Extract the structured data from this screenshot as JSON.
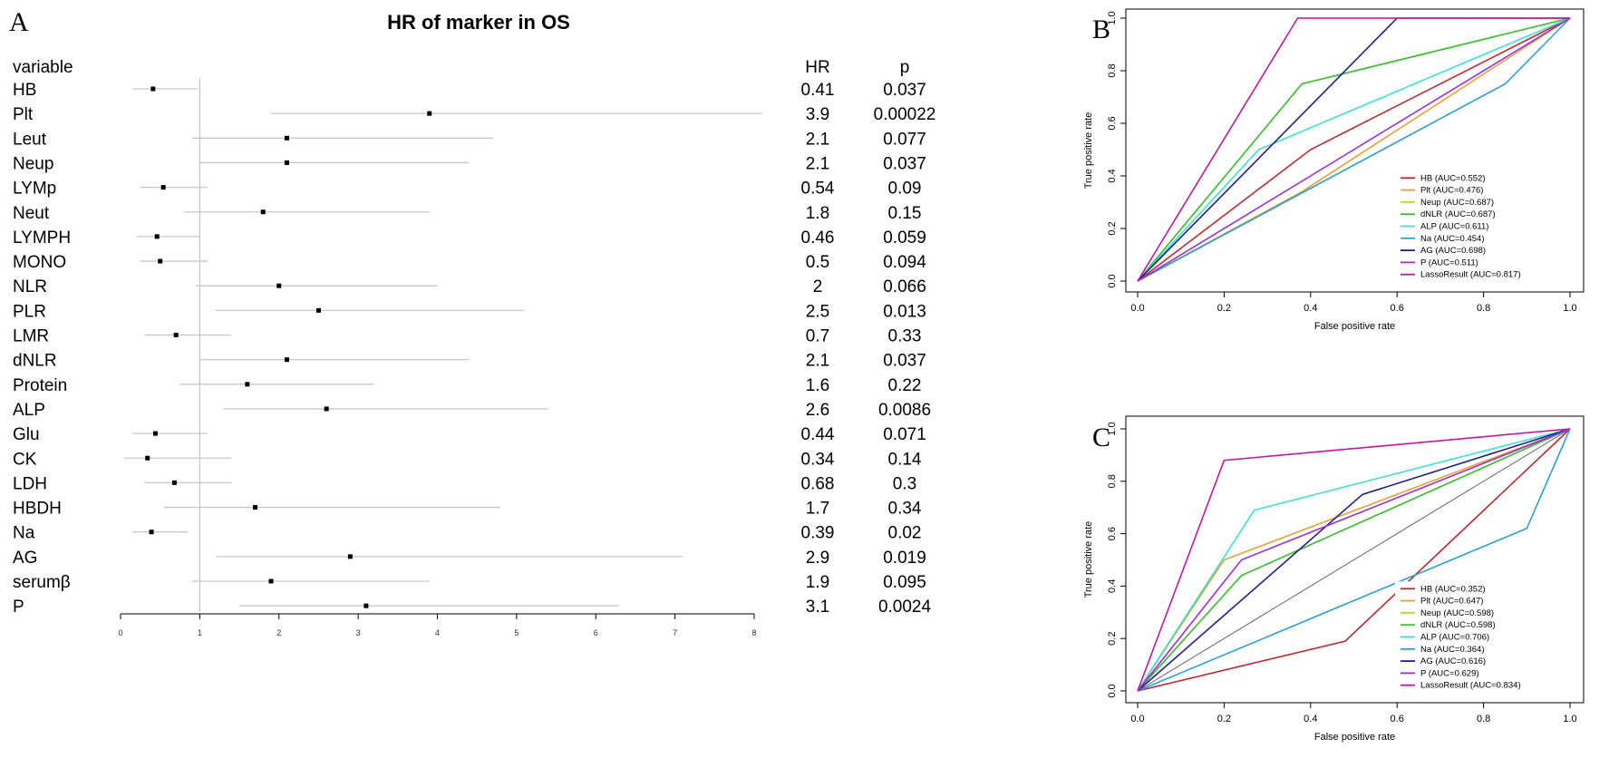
{
  "chart_data": [
    {
      "type": "forest",
      "panel_label": "A",
      "title": "HR of marker in OS",
      "header_variable": "variable",
      "header_hr": "HR",
      "header_p": "p",
      "x_ticks": [
        "0",
        "1",
        "2",
        "3",
        "4",
        "5",
        "6",
        "7",
        "8"
      ],
      "xlim": [
        0,
        8
      ],
      "reference_line": 1,
      "rows": [
        {
          "variable": "HB",
          "hr": 0.41,
          "lo": 0.15,
          "hi": 0.98,
          "hr_text": "0.41",
          "p": "0.037"
        },
        {
          "variable": "Plt",
          "hr": 3.9,
          "lo": 1.9,
          "hi": 8.1,
          "hr_text": "3.9",
          "p": "0.00022"
        },
        {
          "variable": "Leut",
          "hr": 2.1,
          "lo": 0.9,
          "hi": 4.7,
          "hr_text": "2.1",
          "p": "0.077"
        },
        {
          "variable": "Neup",
          "hr": 2.1,
          "lo": 1.0,
          "hi": 4.4,
          "hr_text": "2.1",
          "p": "0.037"
        },
        {
          "variable": "LYMp",
          "hr": 0.54,
          "lo": 0.25,
          "hi": 1.1,
          "hr_text": "0.54",
          "p": "0.09"
        },
        {
          "variable": "Neut",
          "hr": 1.8,
          "lo": 0.8,
          "hi": 3.9,
          "hr_text": "1.8",
          "p": "0.15"
        },
        {
          "variable": "LYMPH",
          "hr": 0.46,
          "lo": 0.2,
          "hi": 1.0,
          "hr_text": "0.46",
          "p": "0.059"
        },
        {
          "variable": "MONO",
          "hr": 0.5,
          "lo": 0.25,
          "hi": 1.1,
          "hr_text": "0.5",
          "p": "0.094"
        },
        {
          "variable": "NLR",
          "hr": 2.0,
          "lo": 0.95,
          "hi": 4.0,
          "hr_text": "2",
          "p": "0.066"
        },
        {
          "variable": "PLR",
          "hr": 2.5,
          "lo": 1.2,
          "hi": 5.1,
          "hr_text": "2.5",
          "p": "0.013"
        },
        {
          "variable": "LMR",
          "hr": 0.7,
          "lo": 0.3,
          "hi": 1.4,
          "hr_text": "0.7",
          "p": "0.33"
        },
        {
          "variable": "dNLR",
          "hr": 2.1,
          "lo": 1.0,
          "hi": 4.4,
          "hr_text": "2.1",
          "p": "0.037"
        },
        {
          "variable": "Protein",
          "hr": 1.6,
          "lo": 0.75,
          "hi": 3.2,
          "hr_text": "1.6",
          "p": "0.22"
        },
        {
          "variable": "ALP",
          "hr": 2.6,
          "lo": 1.3,
          "hi": 5.4,
          "hr_text": "2.6",
          "p": "0.0086"
        },
        {
          "variable": "Glu",
          "hr": 0.44,
          "lo": 0.15,
          "hi": 1.1,
          "hr_text": "0.44",
          "p": "0.071"
        },
        {
          "variable": "CK",
          "hr": 0.34,
          "lo": 0.05,
          "hi": 1.4,
          "hr_text": "0.34",
          "p": "0.14"
        },
        {
          "variable": "LDH",
          "hr": 0.68,
          "lo": 0.3,
          "hi": 1.4,
          "hr_text": "0.68",
          "p": "0.3"
        },
        {
          "variable": "HBDH",
          "hr": 1.7,
          "lo": 0.55,
          "hi": 4.8,
          "hr_text": "1.7",
          "p": "0.34"
        },
        {
          "variable": "Na",
          "hr": 0.39,
          "lo": 0.15,
          "hi": 0.85,
          "hr_text": "0.39",
          "p": "0.02"
        },
        {
          "variable": "AG",
          "hr": 2.9,
          "lo": 1.2,
          "hi": 7.1,
          "hr_text": "2.9",
          "p": "0.019"
        },
        {
          "variable": "serumβ",
          "hr": 1.9,
          "lo": 0.9,
          "hi": 3.9,
          "hr_text": "1.9",
          "p": "0.095"
        },
        {
          "variable": "P",
          "hr": 3.1,
          "lo": 1.5,
          "hi": 6.3,
          "hr_text": "3.1",
          "p": "0.0024"
        }
      ]
    },
    {
      "type": "line",
      "panel_label": "B",
      "xlabel": "False positive rate",
      "ylabel": "True positive rate",
      "xlim": [
        0,
        1
      ],
      "ylim": [
        0,
        1
      ],
      "x_ticks": [
        "0.0",
        "0.2",
        "0.4",
        "0.6",
        "0.8",
        "1.0"
      ],
      "y_ticks": [
        "0.0",
        "0.2",
        "0.4",
        "0.6",
        "0.8",
        "1.0"
      ],
      "legend_position": "bottom-right",
      "diagonal": false,
      "series": [
        {
          "name": "HB (AUC=0.552)",
          "color": "#c0282d",
          "x": [
            0,
            0.4,
            1
          ],
          "y": [
            0,
            0.5,
            1
          ]
        },
        {
          "name": "Plt (AUC=0.476)",
          "color": "#e5a23a",
          "x": [
            0,
            0.38,
            1
          ],
          "y": [
            0,
            0.34,
            1
          ]
        },
        {
          "name": "Neup (AUC=0.687)",
          "color": "#c8cc3a",
          "x": [
            0,
            0.38,
            1
          ],
          "y": [
            0,
            0.75,
            1
          ]
        },
        {
          "name": "dNLR (AUC=0.687)",
          "color": "#3cbf3c",
          "x": [
            0,
            0.38,
            1
          ],
          "y": [
            0,
            0.75,
            1
          ]
        },
        {
          "name": "ALP (AUC=0.611)",
          "color": "#3fe0d0",
          "x": [
            0,
            0.28,
            1
          ],
          "y": [
            0,
            0.5,
            1
          ]
        },
        {
          "name": "Na (AUC=0.454)",
          "color": "#2aa1d6",
          "x": [
            0,
            0.85,
            1
          ],
          "y": [
            0,
            0.75,
            1
          ]
        },
        {
          "name": "AG (AUC=0.698)",
          "color": "#1f1f8a",
          "x": [
            0,
            0.6,
            1
          ],
          "y": [
            0,
            1,
            1
          ]
        },
        {
          "name": "P (AUC=0.511)",
          "color": "#9b30d9",
          "x": [
            0,
            0.45,
            1
          ],
          "y": [
            0,
            0.45,
            1
          ]
        },
        {
          "name": "LassoResult (AUC=0.817)",
          "color": "#c2189e",
          "x": [
            0,
            0.37,
            1
          ],
          "y": [
            0,
            1,
            1
          ]
        }
      ]
    },
    {
      "type": "line",
      "panel_label": "C",
      "xlabel": "False positive rate",
      "ylabel": "True positive rate",
      "xlim": [
        0,
        1
      ],
      "ylim": [
        0,
        1
      ],
      "x_ticks": [
        "0.0",
        "0.2",
        "0.4",
        "0.6",
        "0.8",
        "1.0"
      ],
      "y_ticks": [
        "0.0",
        "0.2",
        "0.4",
        "0.6",
        "0.8",
        "1.0"
      ],
      "legend_position": "bottom-right",
      "diagonal": true,
      "series": [
        {
          "name": "HB (AUC=0.352)",
          "color": "#c0282d",
          "x": [
            0,
            0.48,
            1
          ],
          "y": [
            0,
            0.19,
            1
          ]
        },
        {
          "name": "Plt (AUC=0.647)",
          "color": "#e5a23a",
          "x": [
            0,
            0.2,
            1
          ],
          "y": [
            0,
            0.5,
            1
          ]
        },
        {
          "name": "Neup (AUC=0.598)",
          "color": "#c8cc3a",
          "x": [
            0,
            0.24,
            1
          ],
          "y": [
            0,
            0.44,
            1
          ]
        },
        {
          "name": "dNLR (AUC=0.598)",
          "color": "#3cbf3c",
          "x": [
            0,
            0.24,
            1
          ],
          "y": [
            0,
            0.44,
            1
          ]
        },
        {
          "name": "ALP (AUC=0.706)",
          "color": "#3fe0d0",
          "x": [
            0,
            0.27,
            1
          ],
          "y": [
            0,
            0.69,
            1
          ]
        },
        {
          "name": "Na (AUC=0.364)",
          "color": "#2aa1d6",
          "x": [
            0,
            0.9,
            1
          ],
          "y": [
            0,
            0.62,
            1
          ]
        },
        {
          "name": "AG (AUC=0.616)",
          "color": "#1f1f8a",
          "x": [
            0,
            0.52,
            1
          ],
          "y": [
            0,
            0.75,
            1
          ]
        },
        {
          "name": "P (AUC=0.629)",
          "color": "#9b30d9",
          "x": [
            0,
            0.24,
            1
          ],
          "y": [
            0,
            0.5,
            1
          ]
        },
        {
          "name": "LassoResult (AUC=0.834)",
          "color": "#c2189e",
          "x": [
            0,
            0.2,
            1
          ],
          "y": [
            0,
            0.88,
            1
          ]
        }
      ]
    }
  ]
}
